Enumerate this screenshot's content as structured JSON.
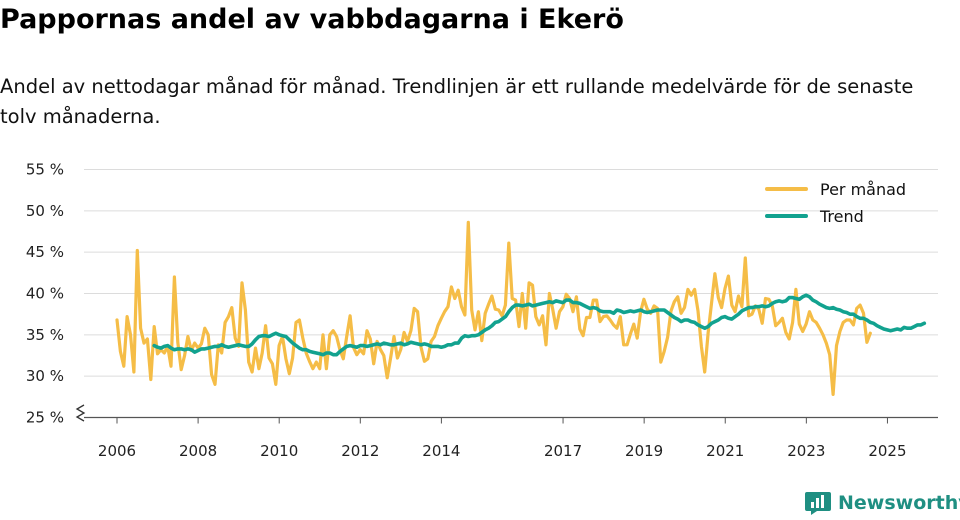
{
  "title": "Pappornas andel av vabbdagarna i Ekerö",
  "subtitle": "Andel av nettodagar månad för månad. Trendlinjen är ett rullande medelvärde för de senaste tolv månaderna.",
  "brand": "Newsworthy",
  "colors": {
    "monthly": "#f5bd47",
    "trend": "#12a28f",
    "grid": "#dcdcdc",
    "axis": "#555555",
    "brand": "#1f8f82"
  },
  "chart_data": {
    "type": "line",
    "title": "Pappornas andel av vabbdagarna i Ekerö",
    "xlabel": "",
    "ylabel": "",
    "ylim": [
      25,
      55
    ],
    "y_ticks": [
      25,
      30,
      35,
      40,
      45,
      50,
      55
    ],
    "y_tick_labels": [
      "25 %",
      "30 %",
      "35 %",
      "40 %",
      "45 %",
      "50 %",
      "55 %"
    ],
    "x_ticks": [
      2006,
      2008,
      2010,
      2012,
      2014,
      2017,
      2019,
      2021,
      2023,
      2025
    ],
    "x_tick_labels": [
      "2006",
      "2008",
      "2010",
      "2012",
      "2014",
      "2017",
      "2019",
      "2021",
      "2023",
      "2025"
    ],
    "x_tick_positions": [
      2006.0,
      2008.0,
      2010.0,
      2012.0,
      2014.0,
      2017.0,
      2019.0,
      2021.0,
      2023.0,
      2025.0
    ],
    "legend": {
      "position": "top-right",
      "entries": [
        "Per månad",
        "Trend"
      ]
    },
    "grid": true,
    "series": [
      {
        "name": "Per månad",
        "start": 2006.0,
        "step": 0.0833,
        "values": [
          36.8,
          33.0,
          31.2,
          37.2,
          35.0,
          30.5,
          45.2,
          35.8,
          34.0,
          34.5,
          29.6,
          36.0,
          32.7,
          33.2,
          32.8,
          33.6,
          31.2,
          42.0,
          34.1,
          30.8,
          32.5,
          34.8,
          33.1,
          34.0,
          33.4,
          33.9,
          35.8,
          35.0,
          30.2,
          29.0,
          33.8,
          32.8,
          36.5,
          37.2,
          38.3,
          34.6,
          33.6,
          41.3,
          38.0,
          31.7,
          30.5,
          33.4,
          30.9,
          32.8,
          36.1,
          32.2,
          31.5,
          29.0,
          33.7,
          34.8,
          32.1,
          30.3,
          32.2,
          36.5,
          36.8,
          34.6,
          32.8,
          31.8,
          30.9,
          31.7,
          30.9,
          35.0,
          30.9,
          35.0,
          35.5,
          34.8,
          33.2,
          32.1,
          34.8,
          37.3,
          33.5,
          32.6,
          33.2,
          32.7,
          35.5,
          34.5,
          31.5,
          34.2,
          33.2,
          32.5,
          29.8,
          32.2,
          34.8,
          32.2,
          33.2,
          35.3,
          34.2,
          35.5,
          38.2,
          37.8,
          33.5,
          31.8,
          32.1,
          34.2,
          34.8,
          36.1,
          37.0,
          37.8,
          38.4,
          40.8,
          39.4,
          40.4,
          38.4,
          37.4,
          48.6,
          38.0,
          35.6,
          37.8,
          34.3,
          37.6,
          38.7,
          39.7,
          38.1,
          38.0,
          37.3,
          38.6,
          46.1,
          39.4,
          39.2,
          36.0,
          40.0,
          35.8,
          41.3,
          41.0,
          37.2,
          36.2,
          37.3,
          33.8,
          40.0,
          38.1,
          35.8,
          37.8,
          38.4,
          39.9,
          39.4,
          37.8,
          39.6,
          35.7,
          34.9,
          37.1,
          37.1,
          39.2,
          39.2,
          36.6,
          37.2,
          37.3,
          36.8,
          36.2,
          35.8,
          37.2,
          33.8,
          33.8,
          35.1,
          36.3,
          34.6,
          37.8,
          39.3,
          38.1,
          37.6,
          38.5,
          38.2,
          31.7,
          33.0,
          34.7,
          37.9,
          39.0,
          39.6,
          37.6,
          38.3,
          40.5,
          39.8,
          40.5,
          37.9,
          33.6,
          30.5,
          35.2,
          38.8,
          42.4,
          39.5,
          38.3,
          40.6,
          42.1,
          38.6,
          37.8,
          39.7,
          38.4,
          44.3,
          37.3,
          37.5,
          38.5,
          38.1,
          36.4,
          39.4,
          39.3,
          38.5,
          36.1,
          36.5,
          37.0,
          35.3,
          34.5,
          36.5,
          40.5,
          36.3,
          35.4,
          36.3,
          37.8,
          36.8,
          36.5,
          35.8,
          35.0,
          34.0,
          32.6,
          27.8,
          33.7,
          35.4,
          36.5,
          36.8,
          36.8,
          36.2,
          38.2,
          38.6,
          37.6,
          34.1,
          35.2
        ]
      },
      {
        "name": "Trend",
        "start": 2006.9167,
        "step": 0.0833,
        "values": [
          33.7,
          33.5,
          33.4,
          33.6,
          33.7,
          33.4,
          33.2,
          33.3,
          33.3,
          33.2,
          33.3,
          33.2,
          32.9,
          33.1,
          33.3,
          33.3,
          33.4,
          33.5,
          33.6,
          33.6,
          33.8,
          33.6,
          33.5,
          33.6,
          33.7,
          33.8,
          33.7,
          33.6,
          33.6,
          33.9,
          34.4,
          34.8,
          34.9,
          34.9,
          34.8,
          35.0,
          35.2,
          35.0,
          34.9,
          34.8,
          34.4,
          34.0,
          33.7,
          33.4,
          33.2,
          33.2,
          33.0,
          32.9,
          32.8,
          32.7,
          32.6,
          32.8,
          32.8,
          32.6,
          32.6,
          33.0,
          33.3,
          33.6,
          33.7,
          33.6,
          33.5,
          33.7,
          33.7,
          33.6,
          33.7,
          33.8,
          33.9,
          33.8,
          34.0,
          33.9,
          33.8,
          33.8,
          33.9,
          34.0,
          33.8,
          33.9,
          34.1,
          34.0,
          33.9,
          33.8,
          33.9,
          33.8,
          33.6,
          33.6,
          33.6,
          33.5,
          33.6,
          33.8,
          33.8,
          34.0,
          34.0,
          34.6,
          34.9,
          34.8,
          34.9,
          34.9,
          35.0,
          35.3,
          35.6,
          35.8,
          36.1,
          36.5,
          36.6,
          36.9,
          37.2,
          37.8,
          38.3,
          38.6,
          38.6,
          38.5,
          38.6,
          38.7,
          38.5,
          38.6,
          38.7,
          38.8,
          38.9,
          39.0,
          38.9,
          39.1,
          39.0,
          38.9,
          39.2,
          39.2,
          38.9,
          38.9,
          38.8,
          38.6,
          38.4,
          38.2,
          38.3,
          38.2,
          37.9,
          37.8,
          37.8,
          37.8,
          37.6,
          38.0,
          37.9,
          37.7,
          37.8,
          37.9,
          37.8,
          37.9,
          38.0,
          37.8,
          37.7,
          37.8,
          37.9,
          38.0,
          38.0,
          38.0,
          37.7,
          37.4,
          37.1,
          36.9,
          36.6,
          36.8,
          36.8,
          36.6,
          36.5,
          36.2,
          36.0,
          35.8,
          36.0,
          36.4,
          36.6,
          36.8,
          37.1,
          37.2,
          37.0,
          36.9,
          37.2,
          37.5,
          37.9,
          38.1,
          38.3,
          38.3,
          38.4,
          38.4,
          38.5,
          38.4,
          38.5,
          38.8,
          39.0,
          39.1,
          39.0,
          39.1,
          39.5,
          39.5,
          39.4,
          39.3,
          39.6,
          39.8,
          39.6,
          39.2,
          39.0,
          38.7,
          38.5,
          38.3,
          38.2,
          38.3,
          38.1,
          38.0,
          37.8,
          37.7,
          37.5,
          37.5,
          37.2,
          37.0,
          37.0,
          36.8,
          36.5,
          36.4,
          36.1,
          35.9,
          35.7,
          35.6,
          35.5,
          35.6,
          35.7,
          35.6,
          35.9,
          35.8,
          35.8,
          36.0,
          36.2,
          36.2,
          36.4
        ]
      }
    ]
  }
}
